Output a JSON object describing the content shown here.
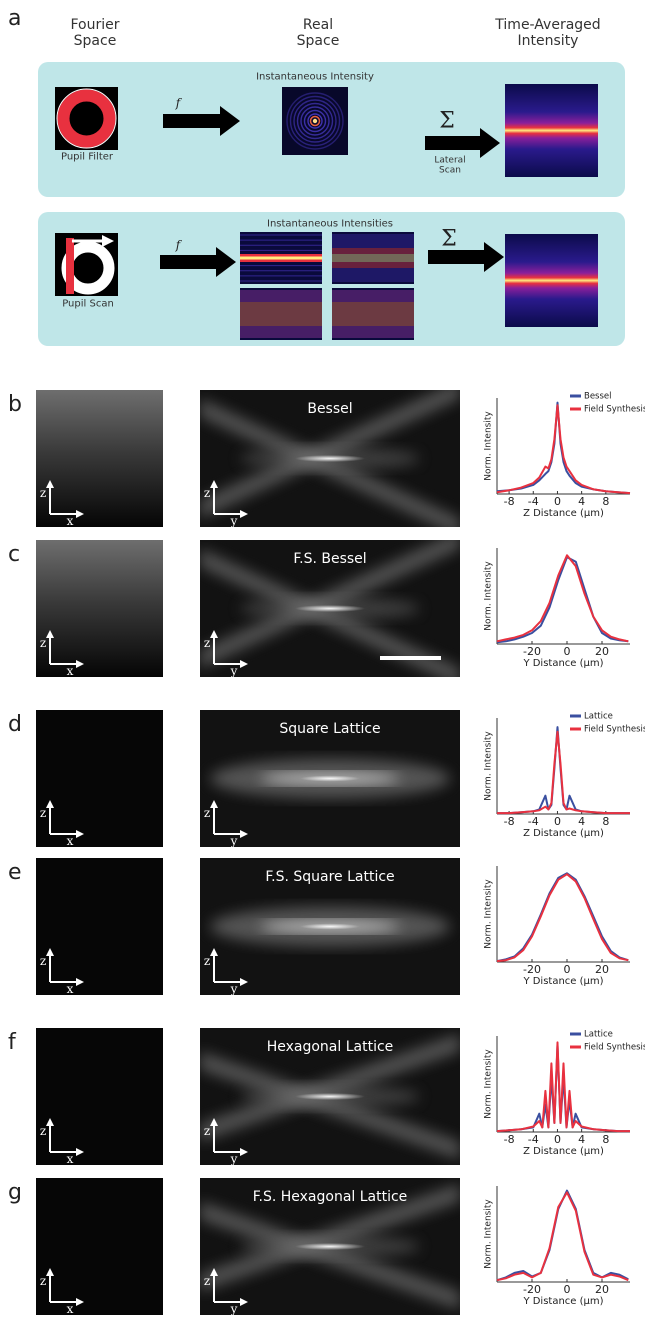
{
  "panel_a": {
    "label": "a",
    "headers": [
      "Fourier Space",
      "Real Space",
      "Time-Averaged Intensity"
    ],
    "row1": {
      "title": "Instantaneous Intensity",
      "left_caption": "Pupil Filter",
      "arrow_label": "f",
      "sum_symbol": "Σ",
      "sum_caption": "Lateral Scan"
    },
    "row2": {
      "title": "Instantaneous Intensities",
      "left_caption": "Pupil Scan",
      "arrow_label": "f",
      "sum_symbol": "Σ"
    }
  },
  "panels": [
    {
      "label": "b",
      "image_title": "Bessel",
      "left_axes": [
        "z",
        "x"
      ],
      "mid_axes": [
        "z",
        "y"
      ]
    },
    {
      "label": "c",
      "image_title": "F.S. Bessel",
      "left_axes": [
        "z",
        "x"
      ],
      "mid_axes": [
        "z",
        "y"
      ]
    },
    {
      "label": "d",
      "image_title": "Square Lattice",
      "left_axes": [
        "z",
        "x"
      ],
      "mid_axes": [
        "z",
        "y"
      ]
    },
    {
      "label": "e",
      "image_title": "F.S. Square Lattice",
      "left_axes": [
        "z",
        "x"
      ],
      "mid_axes": [
        "z",
        "y"
      ]
    },
    {
      "label": "f",
      "image_title": "Hexagonal Lattice",
      "left_axes": [
        "z",
        "x"
      ],
      "mid_axes": [
        "z",
        "y"
      ]
    },
    {
      "label": "g",
      "image_title": "F.S. Hexagonal Lattice",
      "left_axes": [
        "z",
        "x"
      ],
      "mid_axes": [
        "z",
        "y"
      ]
    }
  ],
  "chart_data": [
    {
      "type": "line",
      "xlabel": "Z Distance (μm)",
      "ylabel": "Norm. Intensity",
      "x": [
        -10,
        -8,
        -6,
        -4,
        -3,
        -2,
        -1.5,
        -1,
        -0.5,
        0,
        0.5,
        1,
        1.5,
        2,
        3,
        4,
        6,
        8,
        10,
        12
      ],
      "xlim": [
        -10,
        12
      ],
      "xticks": [
        -8,
        -4,
        0,
        4,
        8
      ],
      "ylim": [
        0,
        1.05
      ],
      "legend": "upper right",
      "series": [
        {
          "name": "Bessel",
          "color": "#3a4fa0",
          "values": [
            0.03,
            0.04,
            0.06,
            0.1,
            0.15,
            0.22,
            0.25,
            0.35,
            0.55,
            1.0,
            0.55,
            0.35,
            0.25,
            0.2,
            0.12,
            0.08,
            0.05,
            0.03,
            0.02,
            0.01
          ]
        },
        {
          "name": "Field Synthesis",
          "color": "#e8313f",
          "values": [
            0.02,
            0.04,
            0.07,
            0.12,
            0.18,
            0.3,
            0.28,
            0.38,
            0.6,
            0.97,
            0.6,
            0.4,
            0.3,
            0.25,
            0.15,
            0.1,
            0.05,
            0.03,
            0.02,
            0.01
          ]
        }
      ]
    },
    {
      "type": "line",
      "xlabel": "Y Distance (μm)",
      "ylabel": "Norm. Intensity",
      "x": [
        -40,
        -35,
        -30,
        -25,
        -20,
        -15,
        -10,
        -5,
        0,
        5,
        10,
        15,
        20,
        25,
        30,
        35
      ],
      "xlim": [
        -40,
        36
      ],
      "xticks": [
        -20,
        0,
        20
      ],
      "ylim": [
        0,
        1.05
      ],
      "series": [
        {
          "color": "#3a4fa0",
          "values": [
            0.02,
            0.03,
            0.05,
            0.08,
            0.12,
            0.2,
            0.4,
            0.7,
            0.95,
            0.9,
            0.6,
            0.3,
            0.12,
            0.06,
            0.04,
            0.03
          ]
        },
        {
          "color": "#e8313f",
          "values": [
            0.03,
            0.05,
            0.07,
            0.1,
            0.15,
            0.25,
            0.45,
            0.75,
            0.97,
            0.85,
            0.55,
            0.3,
            0.15,
            0.08,
            0.05,
            0.03
          ]
        }
      ]
    },
    {
      "type": "line",
      "xlabel": "Z Distance (μm)",
      "ylabel": "Norm. Intensity",
      "x": [
        -10,
        -8,
        -6,
        -4,
        -3,
        -2,
        -1.5,
        -1,
        -0.5,
        0,
        0.5,
        1,
        1.5,
        2,
        3,
        4,
        6,
        8,
        10,
        12
      ],
      "xlim": [
        -10,
        12
      ],
      "xticks": [
        -8,
        -4,
        0,
        4,
        8
      ],
      "ylim": [
        0,
        1.05
      ],
      "legend": "upper right",
      "series": [
        {
          "name": "Lattice",
          "color": "#3a4fa0",
          "values": [
            0.01,
            0.01,
            0.02,
            0.03,
            0.05,
            0.2,
            0.05,
            0.1,
            0.5,
            0.95,
            0.5,
            0.1,
            0.05,
            0.2,
            0.05,
            0.03,
            0.02,
            0.01,
            0.01,
            0.01
          ]
        },
        {
          "name": "Field Synthesis",
          "color": "#e8313f",
          "values": [
            0.01,
            0.01,
            0.02,
            0.03,
            0.04,
            0.08,
            0.05,
            0.12,
            0.55,
            0.9,
            0.55,
            0.12,
            0.05,
            0.06,
            0.04,
            0.03,
            0.02,
            0.01,
            0.01,
            0.01
          ]
        }
      ]
    },
    {
      "type": "line",
      "xlabel": "Y Distance (μm)",
      "ylabel": "Norm. Intensity",
      "x": [
        -40,
        -35,
        -30,
        -25,
        -20,
        -15,
        -10,
        -5,
        0,
        5,
        10,
        15,
        20,
        25,
        30,
        35
      ],
      "xlim": [
        -40,
        36
      ],
      "xticks": [
        -20,
        0,
        20
      ],
      "ylim": [
        0,
        1.05
      ],
      "series": [
        {
          "color": "#3a4fa0",
          "values": [
            0.01,
            0.03,
            0.06,
            0.15,
            0.3,
            0.52,
            0.75,
            0.92,
            0.97,
            0.9,
            0.72,
            0.5,
            0.28,
            0.12,
            0.05,
            0.02
          ]
        },
        {
          "color": "#e8313f",
          "values": [
            0.01,
            0.02,
            0.05,
            0.13,
            0.28,
            0.5,
            0.73,
            0.9,
            0.96,
            0.88,
            0.7,
            0.47,
            0.25,
            0.1,
            0.04,
            0.02
          ]
        }
      ]
    },
    {
      "type": "line",
      "xlabel": "Z Distance (μm)",
      "ylabel": "Norm. Intensity",
      "x": [
        -10,
        -8,
        -6,
        -4,
        -3,
        -2.5,
        -2,
        -1.5,
        -1,
        -0.5,
        0,
        0.5,
        1,
        1.5,
        2,
        2.5,
        3,
        4,
        6,
        8,
        10,
        12
      ],
      "xlim": [
        -10,
        12
      ],
      "xticks": [
        -8,
        -4,
        0,
        4,
        8
      ],
      "ylim": [
        0,
        1.05
      ],
      "legend": "upper right",
      "series": [
        {
          "name": "Lattice",
          "color": "#3a4fa0",
          "values": [
            0.01,
            0.02,
            0.03,
            0.05,
            0.2,
            0.05,
            0.3,
            0.05,
            0.6,
            0.1,
            0.95,
            0.1,
            0.6,
            0.05,
            0.35,
            0.05,
            0.2,
            0.05,
            0.03,
            0.02,
            0.01,
            0.01
          ]
        },
        {
          "name": "Field Synthesis",
          "color": "#e8313f",
          "values": [
            0.01,
            0.02,
            0.03,
            0.06,
            0.12,
            0.05,
            0.45,
            0.05,
            0.75,
            0.1,
            0.98,
            0.1,
            0.75,
            0.05,
            0.45,
            0.05,
            0.12,
            0.06,
            0.03,
            0.02,
            0.01,
            0.01
          ]
        }
      ]
    },
    {
      "type": "line",
      "xlabel": "Y Distance (μm)",
      "ylabel": "Norm. Intensity",
      "x": [
        -40,
        -35,
        -30,
        -25,
        -20,
        -15,
        -10,
        -5,
        0,
        5,
        10,
        15,
        20,
        25,
        30,
        35
      ],
      "xlim": [
        -40,
        36
      ],
      "xticks": [
        -20,
        0,
        20
      ],
      "ylim": [
        0,
        1.05
      ],
      "series": [
        {
          "color": "#3a4fa0",
          "values": [
            0.02,
            0.05,
            0.1,
            0.12,
            0.06,
            0.1,
            0.35,
            0.8,
            1.0,
            0.8,
            0.35,
            0.1,
            0.05,
            0.1,
            0.08,
            0.03
          ]
        },
        {
          "color": "#e8313f",
          "values": [
            0.02,
            0.04,
            0.08,
            0.1,
            0.05,
            0.1,
            0.37,
            0.82,
            0.98,
            0.78,
            0.33,
            0.08,
            0.05,
            0.08,
            0.06,
            0.02
          ]
        }
      ]
    }
  ]
}
